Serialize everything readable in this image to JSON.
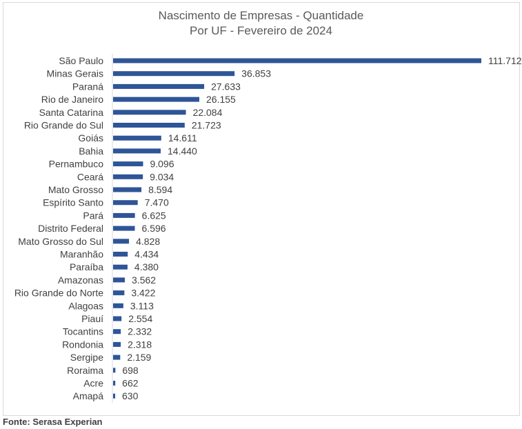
{
  "chart_data": {
    "type": "bar",
    "orientation": "horizontal",
    "title": "Nascimento de Empresas - Quantidade",
    "subtitle": "Por UF - Fevereiro de 2024",
    "categories": [
      "São Paulo",
      "Minas Gerais",
      "Paraná",
      "Rio de Janeiro",
      "Santa Catarina",
      "Rio Grande do Sul",
      "Goiás",
      "Bahia",
      "Pernambuco",
      "Ceará",
      "Mato Grosso",
      "Espírito Santo",
      "Pará",
      "Distrito Federal",
      "Mato Grosso do Sul",
      "Maranhão",
      "Paraíba",
      "Amazonas",
      "Rio Grande do Norte",
      "Alagoas",
      "Piauí",
      "Tocantins",
      "Rondonia",
      "Sergipe",
      "Roraima",
      "Acre",
      "Amapá"
    ],
    "values": [
      111712,
      36853,
      27633,
      26155,
      22084,
      21723,
      14611,
      14440,
      9096,
      9034,
      8594,
      7470,
      6625,
      6596,
      4828,
      4434,
      4380,
      3562,
      3422,
      3113,
      2554,
      2332,
      2318,
      2159,
      698,
      662,
      630
    ],
    "value_labels": [
      "111.712",
      "36.853",
      "27.633",
      "26.155",
      "22.084",
      "21.723",
      "14.611",
      "14.440",
      "9.096",
      "9.034",
      "8.594",
      "7.470",
      "6.625",
      "6.596",
      "4.828",
      "4.434",
      "4.380",
      "3.562",
      "3.422",
      "3.113",
      "2.554",
      "2.332",
      "2.318",
      "2.159",
      "698",
      "662",
      "630"
    ],
    "bar_color": "#2e5597",
    "legend": "none",
    "grid": false
  },
  "footer": {
    "source": "Fonte: Serasa Experian"
  }
}
